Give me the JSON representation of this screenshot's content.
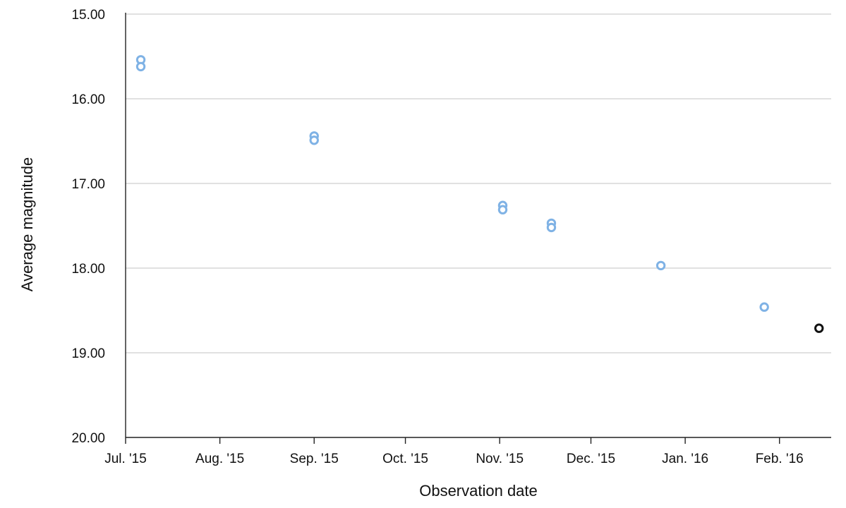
{
  "chart_data": {
    "type": "scatter",
    "xlabel": "Observation date",
    "ylabel": "Average magnitude",
    "x_is_date": true,
    "xlim": [
      "2015-07-01",
      "2016-02-18"
    ],
    "x_ticks": [
      {
        "date": "2015-07-01",
        "label": "Jul. '15"
      },
      {
        "date": "2015-08-01",
        "label": "Aug. '15"
      },
      {
        "date": "2015-09-01",
        "label": "Sep. '15"
      },
      {
        "date": "2015-10-01",
        "label": "Oct. '15"
      },
      {
        "date": "2015-11-01",
        "label": "Nov. '15"
      },
      {
        "date": "2015-12-01",
        "label": "Dec. '15"
      },
      {
        "date": "2016-01-01",
        "label": "Jan. '16"
      },
      {
        "date": "2016-02-01",
        "label": "Feb. '16"
      }
    ],
    "ylim": [
      15,
      20
    ],
    "y_inverted": true,
    "y_ticks": [
      {
        "value": 15,
        "label": "15.00"
      },
      {
        "value": 16,
        "label": "16.00"
      },
      {
        "value": 17,
        "label": "17.00"
      },
      {
        "value": 18,
        "label": "18.00"
      },
      {
        "value": 19,
        "label": "19.00"
      },
      {
        "value": 20,
        "label": "20.00"
      }
    ],
    "grid": "horizontal",
    "series": [
      {
        "color": "#7fb2e5",
        "marker": "hollow-circle",
        "points": [
          {
            "x": "2015-07-06",
            "y": 15.54
          },
          {
            "x": "2015-07-06",
            "y": 15.62
          },
          {
            "x": "2015-09-01",
            "y": 16.44
          },
          {
            "x": "2015-09-01",
            "y": 16.49
          },
          {
            "x": "2015-11-02",
            "y": 17.26
          },
          {
            "x": "2015-11-02",
            "y": 17.31
          },
          {
            "x": "2015-11-18",
            "y": 17.47
          },
          {
            "x": "2015-11-18",
            "y": 17.52
          },
          {
            "x": "2015-12-24",
            "y": 17.97
          },
          {
            "x": "2016-01-27",
            "y": 18.46
          }
        ]
      },
      {
        "color": "#111111",
        "marker": "hollow-circle",
        "points": [
          {
            "x": "2016-02-14",
            "y": 18.71
          }
        ]
      }
    ]
  }
}
